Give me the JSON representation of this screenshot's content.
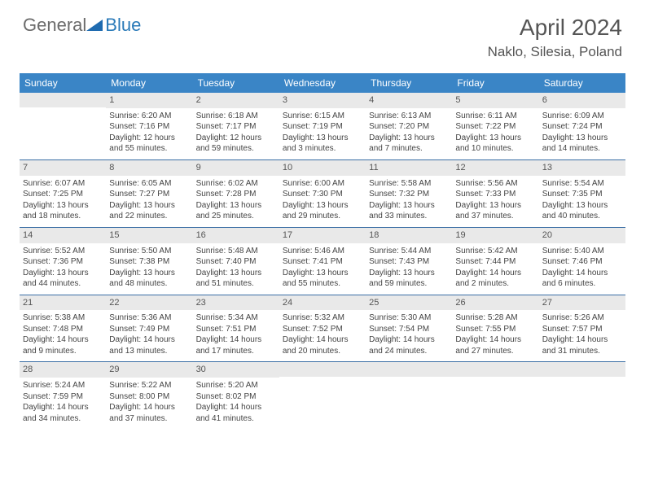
{
  "logo": {
    "text1": "General",
    "text2": "Blue"
  },
  "title": "April 2024",
  "location": "Naklo, Silesia, Poland",
  "colors": {
    "header_bg": "#3a85c6",
    "cell_head_bg": "#e9e9e9",
    "week_border": "#3a6ea5",
    "logo_gray": "#6b6b6b",
    "logo_blue": "#2a7ab8",
    "logo_triangle": "#1f6bb0"
  },
  "days_of_week": [
    "Sunday",
    "Monday",
    "Tuesday",
    "Wednesday",
    "Thursday",
    "Friday",
    "Saturday"
  ],
  "weeks": [
    [
      {
        "n": "",
        "sr": "",
        "ss": "",
        "dl": ""
      },
      {
        "n": "1",
        "sr": "Sunrise: 6:20 AM",
        "ss": "Sunset: 7:16 PM",
        "dl": "Daylight: 12 hours and 55 minutes."
      },
      {
        "n": "2",
        "sr": "Sunrise: 6:18 AM",
        "ss": "Sunset: 7:17 PM",
        "dl": "Daylight: 12 hours and 59 minutes."
      },
      {
        "n": "3",
        "sr": "Sunrise: 6:15 AM",
        "ss": "Sunset: 7:19 PM",
        "dl": "Daylight: 13 hours and 3 minutes."
      },
      {
        "n": "4",
        "sr": "Sunrise: 6:13 AM",
        "ss": "Sunset: 7:20 PM",
        "dl": "Daylight: 13 hours and 7 minutes."
      },
      {
        "n": "5",
        "sr": "Sunrise: 6:11 AM",
        "ss": "Sunset: 7:22 PM",
        "dl": "Daylight: 13 hours and 10 minutes."
      },
      {
        "n": "6",
        "sr": "Sunrise: 6:09 AM",
        "ss": "Sunset: 7:24 PM",
        "dl": "Daylight: 13 hours and 14 minutes."
      }
    ],
    [
      {
        "n": "7",
        "sr": "Sunrise: 6:07 AM",
        "ss": "Sunset: 7:25 PM",
        "dl": "Daylight: 13 hours and 18 minutes."
      },
      {
        "n": "8",
        "sr": "Sunrise: 6:05 AM",
        "ss": "Sunset: 7:27 PM",
        "dl": "Daylight: 13 hours and 22 minutes."
      },
      {
        "n": "9",
        "sr": "Sunrise: 6:02 AM",
        "ss": "Sunset: 7:28 PM",
        "dl": "Daylight: 13 hours and 25 minutes."
      },
      {
        "n": "10",
        "sr": "Sunrise: 6:00 AM",
        "ss": "Sunset: 7:30 PM",
        "dl": "Daylight: 13 hours and 29 minutes."
      },
      {
        "n": "11",
        "sr": "Sunrise: 5:58 AM",
        "ss": "Sunset: 7:32 PM",
        "dl": "Daylight: 13 hours and 33 minutes."
      },
      {
        "n": "12",
        "sr": "Sunrise: 5:56 AM",
        "ss": "Sunset: 7:33 PM",
        "dl": "Daylight: 13 hours and 37 minutes."
      },
      {
        "n": "13",
        "sr": "Sunrise: 5:54 AM",
        "ss": "Sunset: 7:35 PM",
        "dl": "Daylight: 13 hours and 40 minutes."
      }
    ],
    [
      {
        "n": "14",
        "sr": "Sunrise: 5:52 AM",
        "ss": "Sunset: 7:36 PM",
        "dl": "Daylight: 13 hours and 44 minutes."
      },
      {
        "n": "15",
        "sr": "Sunrise: 5:50 AM",
        "ss": "Sunset: 7:38 PM",
        "dl": "Daylight: 13 hours and 48 minutes."
      },
      {
        "n": "16",
        "sr": "Sunrise: 5:48 AM",
        "ss": "Sunset: 7:40 PM",
        "dl": "Daylight: 13 hours and 51 minutes."
      },
      {
        "n": "17",
        "sr": "Sunrise: 5:46 AM",
        "ss": "Sunset: 7:41 PM",
        "dl": "Daylight: 13 hours and 55 minutes."
      },
      {
        "n": "18",
        "sr": "Sunrise: 5:44 AM",
        "ss": "Sunset: 7:43 PM",
        "dl": "Daylight: 13 hours and 59 minutes."
      },
      {
        "n": "19",
        "sr": "Sunrise: 5:42 AM",
        "ss": "Sunset: 7:44 PM",
        "dl": "Daylight: 14 hours and 2 minutes."
      },
      {
        "n": "20",
        "sr": "Sunrise: 5:40 AM",
        "ss": "Sunset: 7:46 PM",
        "dl": "Daylight: 14 hours and 6 minutes."
      }
    ],
    [
      {
        "n": "21",
        "sr": "Sunrise: 5:38 AM",
        "ss": "Sunset: 7:48 PM",
        "dl": "Daylight: 14 hours and 9 minutes."
      },
      {
        "n": "22",
        "sr": "Sunrise: 5:36 AM",
        "ss": "Sunset: 7:49 PM",
        "dl": "Daylight: 14 hours and 13 minutes."
      },
      {
        "n": "23",
        "sr": "Sunrise: 5:34 AM",
        "ss": "Sunset: 7:51 PM",
        "dl": "Daylight: 14 hours and 17 minutes."
      },
      {
        "n": "24",
        "sr": "Sunrise: 5:32 AM",
        "ss": "Sunset: 7:52 PM",
        "dl": "Daylight: 14 hours and 20 minutes."
      },
      {
        "n": "25",
        "sr": "Sunrise: 5:30 AM",
        "ss": "Sunset: 7:54 PM",
        "dl": "Daylight: 14 hours and 24 minutes."
      },
      {
        "n": "26",
        "sr": "Sunrise: 5:28 AM",
        "ss": "Sunset: 7:55 PM",
        "dl": "Daylight: 14 hours and 27 minutes."
      },
      {
        "n": "27",
        "sr": "Sunrise: 5:26 AM",
        "ss": "Sunset: 7:57 PM",
        "dl": "Daylight: 14 hours and 31 minutes."
      }
    ],
    [
      {
        "n": "28",
        "sr": "Sunrise: 5:24 AM",
        "ss": "Sunset: 7:59 PM",
        "dl": "Daylight: 14 hours and 34 minutes."
      },
      {
        "n": "29",
        "sr": "Sunrise: 5:22 AM",
        "ss": "Sunset: 8:00 PM",
        "dl": "Daylight: 14 hours and 37 minutes."
      },
      {
        "n": "30",
        "sr": "Sunrise: 5:20 AM",
        "ss": "Sunset: 8:02 PM",
        "dl": "Daylight: 14 hours and 41 minutes."
      },
      {
        "n": "",
        "sr": "",
        "ss": "",
        "dl": ""
      },
      {
        "n": "",
        "sr": "",
        "ss": "",
        "dl": ""
      },
      {
        "n": "",
        "sr": "",
        "ss": "",
        "dl": ""
      },
      {
        "n": "",
        "sr": "",
        "ss": "",
        "dl": ""
      }
    ]
  ]
}
